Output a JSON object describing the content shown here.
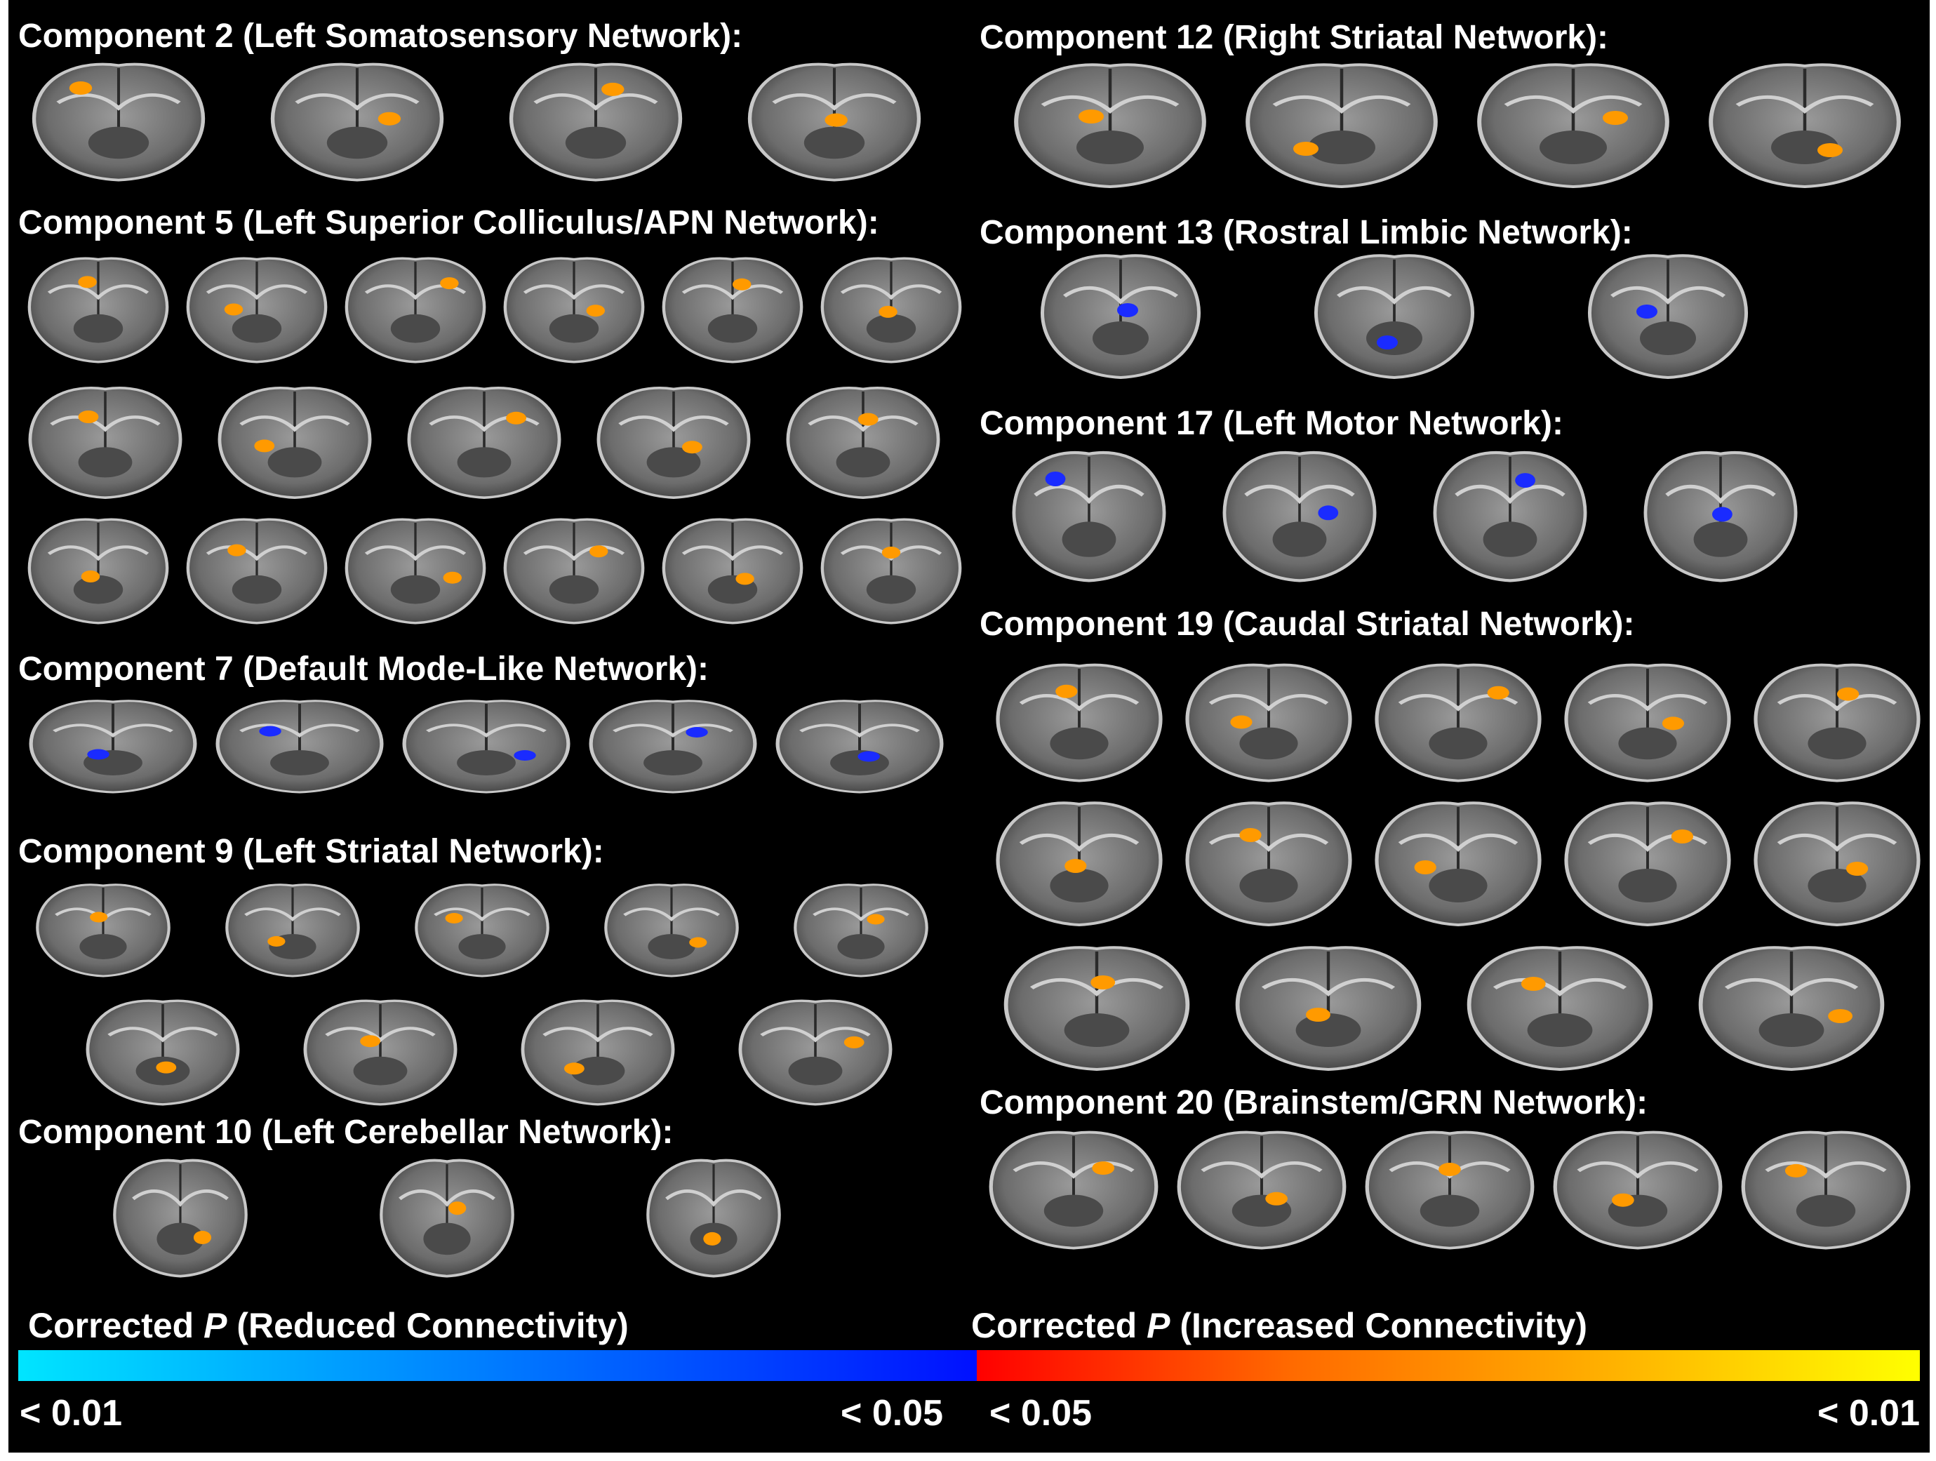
{
  "components": [
    {
      "id": "c2",
      "title": "Component 2 (Left Somatosensory Network):"
    },
    {
      "id": "c5",
      "title": "Component 5 (Left Superior Colliculus/APN  Network):"
    },
    {
      "id": "c7",
      "title": "Component 7 (Default Mode-Like Network):"
    },
    {
      "id": "c9",
      "title": "Component 9 (Left  Striatal Network):"
    },
    {
      "id": "c10",
      "title": "Component 10 (Left Cerebellar Network):"
    },
    {
      "id": "c12",
      "title": "Component 12 (Right Striatal Network):"
    },
    {
      "id": "c13",
      "title": "Component 13 (Rostral Limbic Network):"
    },
    {
      "id": "c17",
      "title": "Component 17 (Left Motor Network):"
    },
    {
      "id": "c19",
      "title": "Component 19 (Caudal Striatal Network):"
    },
    {
      "id": "c20",
      "title": "Component 20 (Brainstem/GRN Network):"
    }
  ],
  "colorbars": {
    "reduced": {
      "prefix": "Corrected ",
      "symbol": "P",
      "suffix": " (Reduced Connectivity)",
      "left_label": "< 0.01",
      "right_label": "< 0.05",
      "from_color": "#00e5ff",
      "to_color": "#0010ff"
    },
    "increased": {
      "prefix": "Corrected ",
      "symbol": "P",
      "suffix": " (Increased Connectivity)",
      "left_label": "< 0.05",
      "right_label": "< 0.01",
      "from_color": "#ff0000",
      "to_color": "#ffff00"
    }
  },
  "colors": {
    "background": "#000000",
    "increased_hot": "#ff9a00",
    "reduced_cool": "#1a2bff"
  }
}
